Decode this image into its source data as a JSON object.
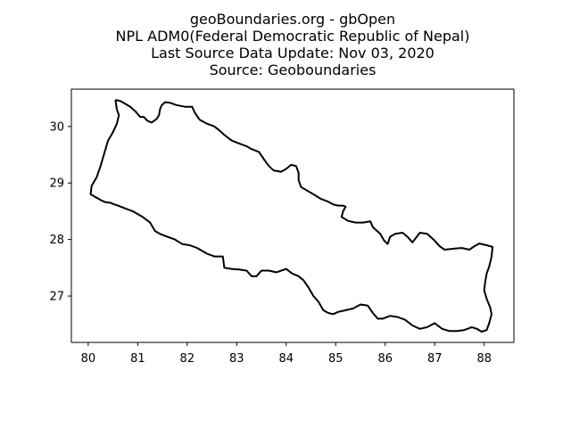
{
  "title": {
    "lines": [
      "geoBoundaries.org - gbOpen",
      "NPL ADM0(Federal Democratic Republic of Nepal)",
      "Last Source Data Update: Nov 03, 2020",
      "Source: Geoboundaries"
    ]
  },
  "chart_data": {
    "type": "line",
    "xlim": [
      79.66,
      88.6
    ],
    "ylim": [
      26.18,
      30.66
    ],
    "x_ticks": [
      "80",
      "81",
      "82",
      "83",
      "84",
      "85",
      "86",
      "87",
      "88"
    ],
    "y_ticks": [
      "27",
      "28",
      "29",
      "30"
    ],
    "grid": false,
    "legend": "none",
    "series": [
      {
        "color": "#000000",
        "points": [
          [
            80.55,
            30.47
          ],
          [
            80.65,
            30.45
          ],
          [
            80.75,
            30.4
          ],
          [
            80.85,
            30.35
          ],
          [
            80.95,
            30.27
          ],
          [
            81.05,
            30.17
          ],
          [
            81.12,
            30.17
          ],
          [
            81.2,
            30.1
          ],
          [
            81.28,
            30.07
          ],
          [
            81.38,
            30.13
          ],
          [
            81.43,
            30.2
          ],
          [
            81.45,
            30.3
          ],
          [
            81.48,
            30.37
          ],
          [
            81.55,
            30.43
          ],
          [
            81.65,
            30.42
          ],
          [
            81.78,
            30.38
          ],
          [
            81.95,
            30.35
          ],
          [
            82.1,
            30.35
          ],
          [
            82.15,
            30.25
          ],
          [
            82.25,
            30.12
          ],
          [
            82.4,
            30.05
          ],
          [
            82.55,
            30.0
          ],
          [
            82.65,
            29.93
          ],
          [
            82.75,
            29.85
          ],
          [
            82.9,
            29.75
          ],
          [
            83.05,
            29.7
          ],
          [
            83.2,
            29.65
          ],
          [
            83.3,
            29.6
          ],
          [
            83.45,
            29.55
          ],
          [
            83.55,
            29.42
          ],
          [
            83.65,
            29.3
          ],
          [
            83.75,
            29.22
          ],
          [
            83.9,
            29.2
          ],
          [
            84.0,
            29.25
          ],
          [
            84.1,
            29.32
          ],
          [
            84.2,
            29.3
          ],
          [
            84.25,
            29.18
          ],
          [
            84.25,
            29.05
          ],
          [
            84.3,
            28.93
          ],
          [
            84.45,
            28.85
          ],
          [
            84.55,
            28.8
          ],
          [
            84.7,
            28.72
          ],
          [
            84.85,
            28.67
          ],
          [
            84.95,
            28.62
          ],
          [
            85.05,
            28.6
          ],
          [
            85.15,
            28.6
          ],
          [
            85.2,
            28.58
          ],
          [
            85.15,
            28.5
          ],
          [
            85.12,
            28.4
          ],
          [
            85.25,
            28.33
          ],
          [
            85.4,
            28.3
          ],
          [
            85.55,
            28.3
          ],
          [
            85.7,
            28.32
          ],
          [
            85.75,
            28.22
          ],
          [
            85.9,
            28.1
          ],
          [
            85.98,
            27.98
          ],
          [
            86.05,
            27.92
          ],
          [
            86.1,
            28.05
          ],
          [
            86.2,
            28.1
          ],
          [
            86.35,
            28.12
          ],
          [
            86.45,
            28.05
          ],
          [
            86.55,
            27.95
          ],
          [
            86.7,
            28.12
          ],
          [
            86.85,
            28.1
          ],
          [
            87.0,
            27.98
          ],
          [
            87.1,
            27.88
          ],
          [
            87.2,
            27.82
          ],
          [
            87.4,
            27.84
          ],
          [
            87.55,
            27.85
          ],
          [
            87.7,
            27.82
          ],
          [
            87.8,
            27.88
          ],
          [
            87.9,
            27.93
          ],
          [
            88.05,
            27.9
          ],
          [
            88.17,
            27.87
          ],
          [
            88.15,
            27.7
          ],
          [
            88.1,
            27.52
          ],
          [
            88.05,
            27.4
          ],
          [
            88.02,
            27.25
          ],
          [
            88.0,
            27.1
          ],
          [
            88.05,
            26.95
          ],
          [
            88.12,
            26.8
          ],
          [
            88.15,
            26.68
          ],
          [
            88.1,
            26.52
          ],
          [
            88.05,
            26.4
          ],
          [
            87.95,
            26.37
          ],
          [
            87.85,
            26.42
          ],
          [
            87.75,
            26.45
          ],
          [
            87.6,
            26.4
          ],
          [
            87.45,
            26.38
          ],
          [
            87.3,
            26.38
          ],
          [
            87.15,
            26.42
          ],
          [
            87.0,
            26.52
          ],
          [
            86.85,
            26.45
          ],
          [
            86.7,
            26.42
          ],
          [
            86.55,
            26.48
          ],
          [
            86.4,
            26.58
          ],
          [
            86.25,
            26.63
          ],
          [
            86.1,
            26.65
          ],
          [
            85.95,
            26.6
          ],
          [
            85.85,
            26.6
          ],
          [
            85.75,
            26.7
          ],
          [
            85.65,
            26.83
          ],
          [
            85.5,
            26.85
          ],
          [
            85.35,
            26.78
          ],
          [
            85.2,
            26.75
          ],
          [
            85.05,
            26.72
          ],
          [
            84.95,
            26.68
          ],
          [
            84.85,
            26.7
          ],
          [
            84.75,
            26.75
          ],
          [
            84.65,
            26.9
          ],
          [
            84.55,
            27.0
          ],
          [
            84.45,
            27.15
          ],
          [
            84.35,
            27.28
          ],
          [
            84.25,
            27.35
          ],
          [
            84.12,
            27.4
          ],
          [
            84.0,
            27.48
          ],
          [
            83.9,
            27.45
          ],
          [
            83.8,
            27.42
          ],
          [
            83.65,
            27.45
          ],
          [
            83.5,
            27.45
          ],
          [
            83.4,
            27.35
          ],
          [
            83.3,
            27.35
          ],
          [
            83.2,
            27.45
          ],
          [
            83.05,
            27.47
          ],
          [
            82.9,
            27.48
          ],
          [
            82.75,
            27.5
          ],
          [
            82.72,
            27.7
          ],
          [
            82.55,
            27.7
          ],
          [
            82.4,
            27.75
          ],
          [
            82.2,
            27.85
          ],
          [
            82.05,
            27.9
          ],
          [
            81.9,
            27.92
          ],
          [
            81.75,
            28.0
          ],
          [
            81.6,
            28.05
          ],
          [
            81.45,
            28.1
          ],
          [
            81.35,
            28.15
          ],
          [
            81.25,
            28.3
          ],
          [
            81.1,
            28.4
          ],
          [
            80.9,
            28.5
          ],
          [
            80.75,
            28.55
          ],
          [
            80.6,
            28.6
          ],
          [
            80.5,
            28.63
          ],
          [
            80.45,
            28.65
          ],
          [
            80.35,
            28.66
          ],
          [
            80.25,
            28.7
          ],
          [
            80.15,
            28.75
          ],
          [
            80.05,
            28.8
          ],
          [
            80.07,
            28.95
          ],
          [
            80.17,
            29.1
          ],
          [
            80.25,
            29.3
          ],
          [
            80.3,
            29.45
          ],
          [
            80.35,
            29.6
          ],
          [
            80.4,
            29.75
          ],
          [
            80.5,
            29.9
          ],
          [
            80.58,
            30.05
          ],
          [
            80.62,
            30.2
          ],
          [
            80.58,
            30.3
          ],
          [
            80.55,
            30.47
          ]
        ]
      }
    ]
  }
}
